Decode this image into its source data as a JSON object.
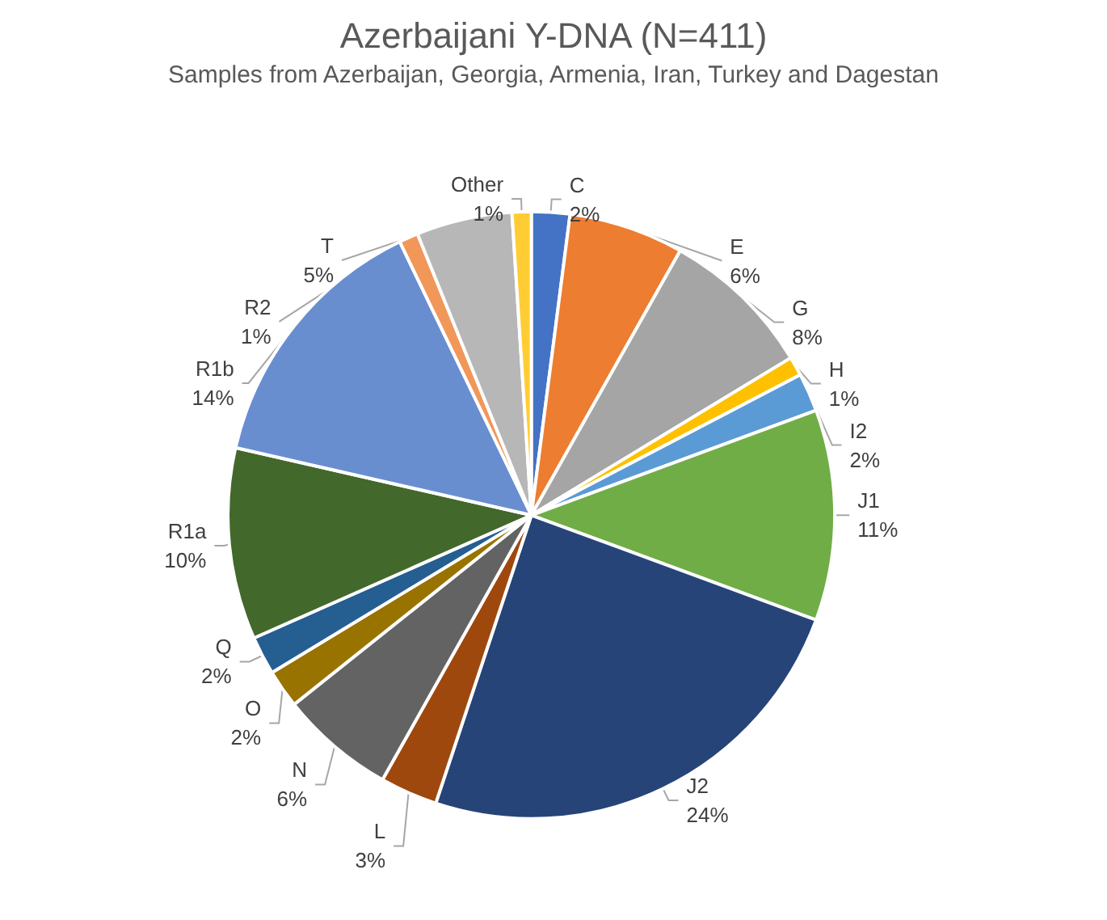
{
  "chart_data": {
    "type": "pie",
    "title": "Azerbaijani Y-DNA (N=411)",
    "subtitle": "Samples from Azerbaijan, Georgia, Armenia, Iran, Turkey and Dagestan",
    "categories": [
      "C",
      "E",
      "G",
      "H",
      "I2",
      "J1",
      "J2",
      "L",
      "N",
      "O",
      "Q",
      "R1a",
      "R1b",
      "R2",
      "T",
      "Other"
    ],
    "values": [
      2,
      6,
      8,
      1,
      2,
      11,
      24,
      3,
      6,
      2,
      2,
      10,
      14,
      1,
      5,
      1
    ],
    "value_labels": [
      "2%",
      "6%",
      "8%",
      "1%",
      "2%",
      "11%",
      "24%",
      "3%",
      "6%",
      "2%",
      "2%",
      "10%",
      "14%",
      "1%",
      "5%",
      "1%"
    ],
    "colors": [
      "#4472c4",
      "#ed7d31",
      "#a5a5a5",
      "#ffc000",
      "#5b9bd5",
      "#70ad47",
      "#264478",
      "#9e480e",
      "#636363",
      "#997300",
      "#255e91",
      "#43682b",
      "#698ed0",
      "#f1975a",
      "#b7b7b7",
      "#ffcd33"
    ],
    "legend": false
  }
}
